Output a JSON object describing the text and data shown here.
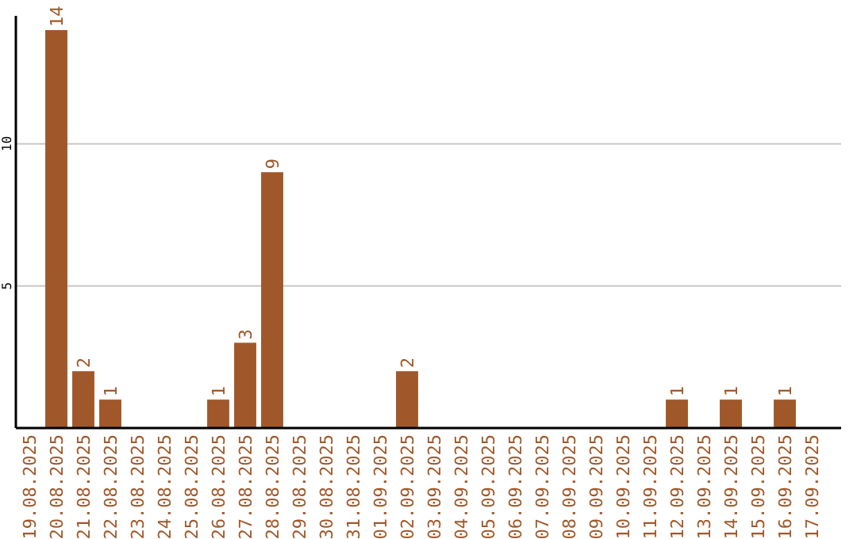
{
  "chart_data": {
    "type": "bar",
    "categories": [
      "19.08.2025",
      "20.08.2025",
      "21.08.2025",
      "22.08.2025",
      "23.08.2025",
      "24.08.2025",
      "25.08.2025",
      "26.08.2025",
      "27.08.2025",
      "28.08.2025",
      "29.08.2025",
      "30.08.2025",
      "31.08.2025",
      "01.09.2025",
      "02.09.2025",
      "03.09.2025",
      "04.09.2025",
      "05.09.2025",
      "06.09.2025",
      "07.09.2025",
      "08.09.2025",
      "09.09.2025",
      "10.09.2025",
      "11.09.2025",
      "12.09.2025",
      "13.09.2025",
      "14.09.2025",
      "15.09.2025",
      "16.09.2025",
      "17.09.2025"
    ],
    "values": [
      0,
      14,
      2,
      1,
      0,
      0,
      0,
      1,
      3,
      9,
      0,
      0,
      0,
      0,
      2,
      0,
      0,
      0,
      0,
      0,
      0,
      0,
      0,
      0,
      1,
      0,
      1,
      0,
      1,
      0
    ],
    "value_labels": [
      null,
      "14",
      "2",
      "1",
      null,
      null,
      null,
      "1",
      "3",
      "9",
      null,
      null,
      null,
      null,
      "2",
      null,
      null,
      null,
      null,
      null,
      null,
      null,
      null,
      null,
      "1",
      null,
      "1",
      null,
      "1",
      null
    ],
    "color": "#a0582a",
    "ylim": [
      0,
      14.5
    ],
    "yticks": [
      5,
      10
    ],
    "grid": "y"
  }
}
